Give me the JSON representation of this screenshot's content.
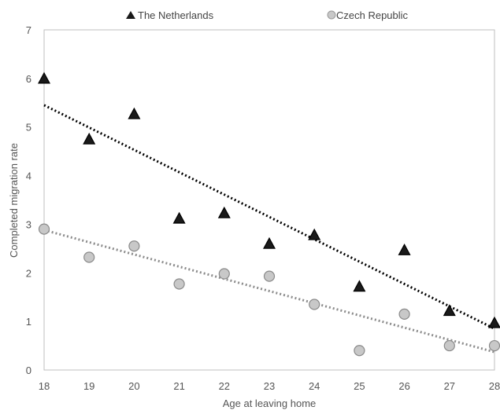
{
  "chart_data": {
    "type": "scatter",
    "xlabel": "Age at leaving home",
    "ylabel": "Completed migration rate",
    "xlim": [
      18,
      28
    ],
    "ylim": [
      0,
      7
    ],
    "x_ticks": [
      "18",
      "19",
      "20",
      "21",
      "22",
      "23",
      "24",
      "25",
      "26",
      "27",
      "28"
    ],
    "y_ticks": [
      "0",
      "1",
      "2",
      "3",
      "4",
      "5",
      "6",
      "7"
    ],
    "grid": false,
    "legend_position": "top",
    "series": [
      {
        "name": "The Netherlands",
        "marker": "triangle",
        "color": "#1a1a1a",
        "trendline_color": "#000000",
        "x": [
          18,
          19,
          20,
          21,
          22,
          23,
          24,
          25,
          26,
          27,
          28
        ],
        "y": [
          6.0,
          4.75,
          5.27,
          3.12,
          3.23,
          2.6,
          2.78,
          1.72,
          2.47,
          1.22,
          0.97
        ],
        "trendline": [
          5.45,
          0.85
        ]
      },
      {
        "name": "Czech Republic",
        "marker": "circle",
        "color": "#c8c8c8",
        "trendline_color": "#8c8c8c",
        "x": [
          18,
          19,
          20,
          21,
          22,
          23,
          24,
          25,
          26,
          27,
          28
        ],
        "y": [
          2.9,
          2.32,
          2.55,
          1.77,
          1.98,
          1.93,
          1.35,
          0.4,
          1.15,
          0.5,
          0.5
        ],
        "trendline": [
          2.88,
          0.37
        ]
      }
    ]
  }
}
